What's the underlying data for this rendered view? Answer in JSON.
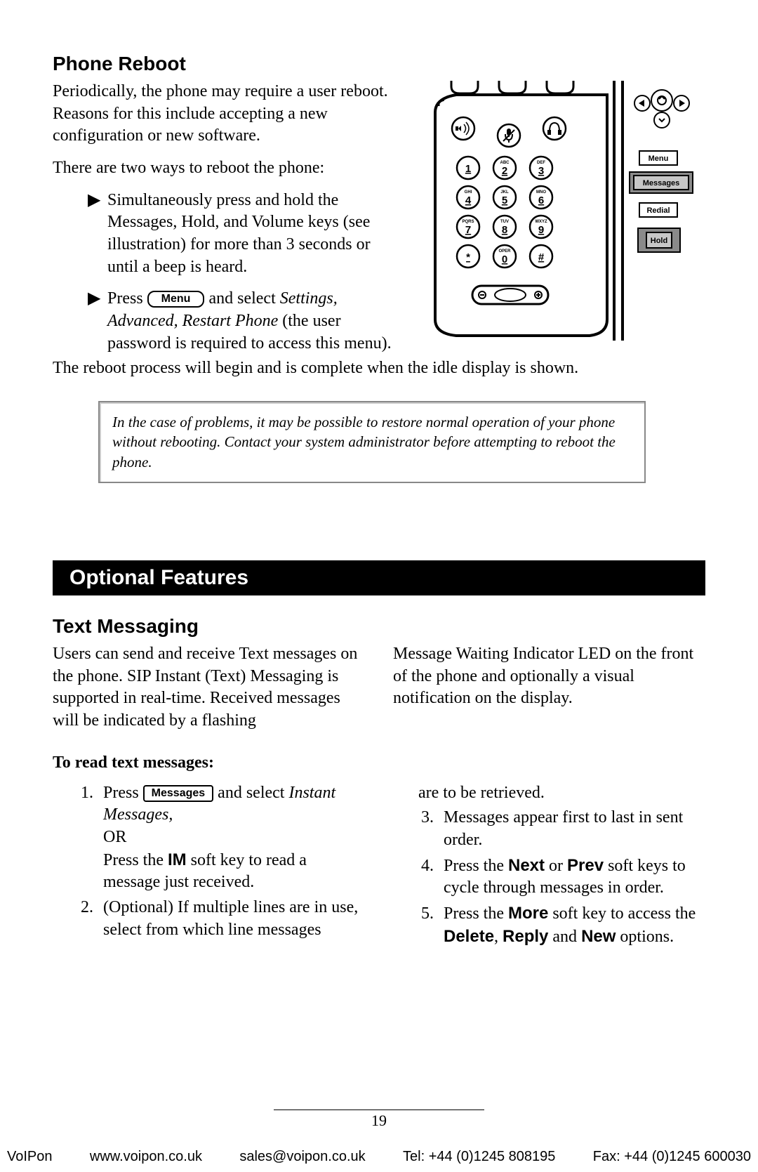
{
  "s1": {
    "heading": "Phone Reboot",
    "p1": "Periodically, the phone may require a user reboot.  Reasons for this include accepting a new configuration or new software.",
    "p2": "There are two ways to reboot the phone:",
    "bullet1": "Simultaneously press and hold the Messages, Hold, and Volume keys (see illustration) for more than 3 seconds or until a beep is heard.",
    "bullet2_a": "Press",
    "bullet2_key": "Menu",
    "bullet2_b": "and select ",
    "bullet2_c": "Settings, Advanced, Restart Phone",
    "bullet2_d": " (the user password is required to access this menu).",
    "p3": "The reboot process will begin and is complete when the idle display is shown.",
    "note": "In the case of problems, it may be possible to restore normal operation of your phone without rebooting.  Contact your system administrator before attempting to reboot the phone."
  },
  "bar": "Optional Features",
  "s2": {
    "heading": "Text Messaging",
    "col1": "Users can send and receive Text messages on the phone.  SIP Instant (Text) Messaging is supported in real-time.  Received messages will be indicated by a flashing",
    "col2": "Message Waiting Indicator LED on the front of the phone and optionally a visual notification on the display.",
    "readHead": "To read text messages:",
    "step1_a": "Press ",
    "step1_key": "Messages",
    "step1_b": " and select ",
    "step1_c": "Instant Messages,",
    "step1_or": "OR",
    "step1_d": "Press the ",
    "step1_e": "IM",
    "step1_f": " soft key to read a message just received.",
    "step2": "(Optional)  If multiple lines are in use, select from which line messages",
    "step2_cont": "are to be retrieved.",
    "step3": "Messages appear first to last in sent order.",
    "step4_a": "Press the ",
    "step4_b": "Next",
    "step4_c": " or ",
    "step4_d": "Prev",
    "step4_e": " soft keys to cycle through messages in order.",
    "step5_a": "Press the ",
    "step5_b": "More",
    "step5_c": " soft key to access the ",
    "step5_d": "Delete",
    "step5_e": ", ",
    "step5_f": "Reply",
    "step5_g": " and ",
    "step5_h": "New",
    "step5_i": " options."
  },
  "pageNumber": "19",
  "footer": {
    "f1": "VoIPon",
    "f2": "www.voipon.co.uk",
    "f3": "sales@voipon.co.uk",
    "f4": "Tel: +44 (0)1245 808195",
    "f5": "Fax: +44 (0)1245 600030"
  },
  "fig": {
    "sideLabels": {
      "menu": "Menu",
      "messages": "Messages",
      "redial": "Redial",
      "hold": "Hold"
    },
    "keypad": [
      {
        "num": "1",
        "sub": ""
      },
      {
        "num": "2",
        "sub": "ABC"
      },
      {
        "num": "3",
        "sub": "DEF"
      },
      {
        "num": "4",
        "sub": "GHI"
      },
      {
        "num": "5",
        "sub": "JKL"
      },
      {
        "num": "6",
        "sub": "MNO"
      },
      {
        "num": "7",
        "sub": "PQRS"
      },
      {
        "num": "8",
        "sub": "TUV"
      },
      {
        "num": "9",
        "sub": "WXYZ"
      },
      {
        "num": "*",
        "sub": ""
      },
      {
        "num": "0",
        "sub": "OPER"
      },
      {
        "num": "#",
        "sub": ""
      }
    ],
    "colors": {
      "panel": "#8a8a8a",
      "light_panel": "#c7c7c7",
      "frame": "#000000"
    }
  }
}
